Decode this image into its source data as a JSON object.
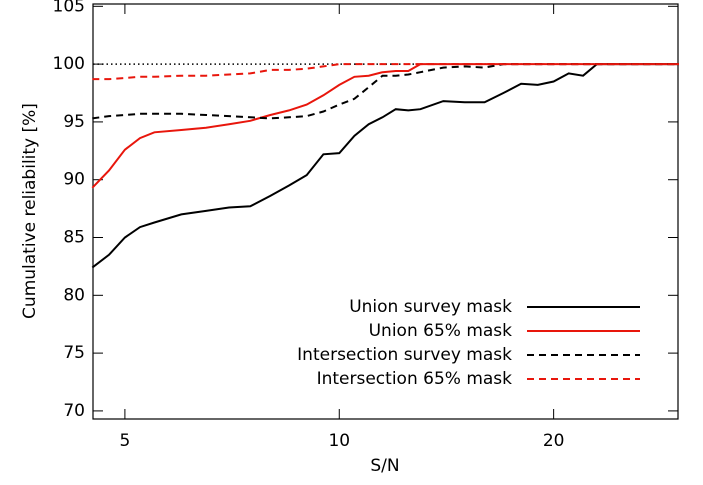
{
  "chart_data": {
    "type": "line",
    "xlabel": "S/N",
    "ylabel": "Cumulative reliability [%]",
    "x": [
      4.5,
      4.75,
      5,
      5.25,
      5.5,
      6,
      6.5,
      7,
      7.5,
      8,
      8.5,
      9,
      9.5,
      10,
      10.5,
      11,
      11.5,
      12,
      12.5,
      13,
      14,
      15,
      16,
      17,
      18,
      19,
      20,
      21,
      22,
      23,
      25,
      30
    ],
    "series": [
      {
        "name": "Union survey mask",
        "color": "#000000",
        "dash": "solid",
        "values": [
          82.4,
          83.5,
          85,
          85.9,
          86.3,
          87,
          87.3,
          87.6,
          87.7,
          88.6,
          89.5,
          90.4,
          92.2,
          92.3,
          93.8,
          94.8,
          95.4,
          96.1,
          96,
          96.1,
          96.8,
          96.7,
          96.7,
          97.5,
          98.3,
          98.2,
          98.5,
          99.2,
          99,
          100,
          100,
          100
        ]
      },
      {
        "name": "Union 65% mask",
        "color": "#e8160c",
        "dash": "solid",
        "values": [
          89.3,
          90.8,
          92.6,
          93.6,
          94.1,
          94.3,
          94.5,
          94.8,
          95.1,
          95.6,
          96,
          96.5,
          97.3,
          98.2,
          98.9,
          99,
          99.3,
          99.4,
          99.4,
          100,
          100,
          100,
          100,
          100,
          100,
          100,
          100,
          100,
          100,
          100,
          100,
          100
        ]
      },
      {
        "name": "Intersection survey mask",
        "color": "#000000",
        "dash": "dashed",
        "values": [
          95.3,
          95.5,
          95.6,
          95.7,
          95.7,
          95.7,
          95.6,
          95.5,
          95.4,
          95.3,
          95.4,
          95.5,
          95.9,
          96.5,
          97,
          98,
          99,
          99,
          99.1,
          99.3,
          99.7,
          99.8,
          99.7,
          100,
          100,
          100,
          100,
          100,
          100,
          100,
          100,
          100
        ]
      },
      {
        "name": "Intersection 65% mask",
        "color": "#e8160c",
        "dash": "dashed",
        "values": [
          98.7,
          98.7,
          98.8,
          98.9,
          98.9,
          99,
          99,
          99.1,
          99.2,
          99.5,
          99.5,
          99.6,
          99.8,
          100,
          100,
          100,
          100,
          100,
          100,
          100,
          100,
          100,
          100,
          100,
          100,
          100,
          100,
          100,
          100,
          100,
          100,
          100
        ]
      }
    ],
    "reference_line": 100,
    "xscale": "log",
    "xlim": [
      4.51,
      29.9
    ],
    "xticks": [
      5,
      10,
      20
    ],
    "ylim": [
      69.3,
      105.2
    ],
    "yticks": [
      70,
      75,
      80,
      85,
      90,
      95,
      100,
      105
    ],
    "legend": "lower right"
  }
}
